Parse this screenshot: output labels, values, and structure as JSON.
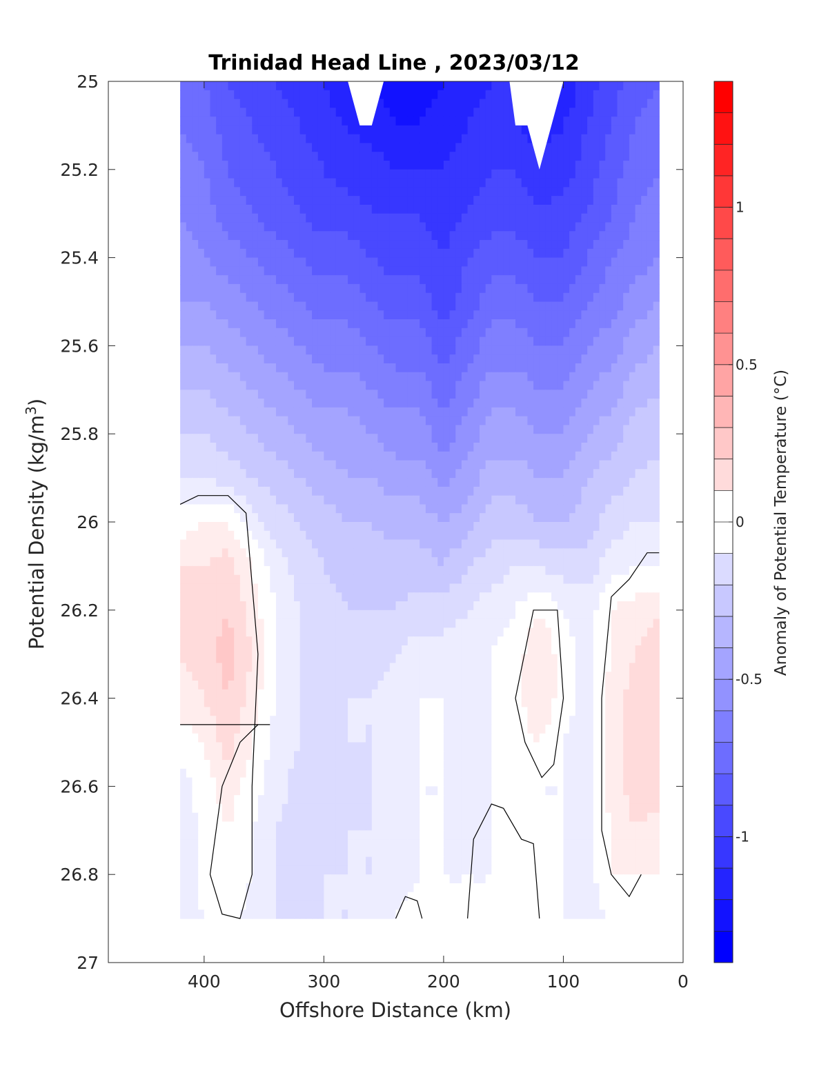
{
  "chart_data": {
    "type": "heatmap",
    "subtype": "filled-contour",
    "title": "Trinidad Head Line , 2023/03/12",
    "xlabel": "Offshore Distance (km)",
    "ylabel": "Potential Density (kg/m",
    "ylabel_sup": "3",
    "ylabel_close": ")",
    "colorbar_label": "Anomaly of Potential Temperature (°C)",
    "xlim": [
      480,
      0
    ],
    "x_reversed": true,
    "ylim": [
      25,
      27
    ],
    "y_reversed": true,
    "xticks": [
      400,
      300,
      200,
      100,
      0
    ],
    "xtick_labels": [
      "400",
      "300",
      "200",
      "100",
      "0"
    ],
    "yticks": [
      25,
      25.2,
      25.4,
      25.6,
      25.8,
      26,
      26.2,
      26.4,
      26.6,
      26.8,
      27
    ],
    "ytick_labels": [
      "25",
      "25.2",
      "25.4",
      "25.6",
      "25.8",
      "26",
      "26.2",
      "26.4",
      "26.6",
      "26.8",
      "27"
    ],
    "colorbar": {
      "range": [
        -1.4,
        1.4
      ],
      "step": 0.1,
      "ticks": [
        1,
        0.5,
        0,
        -0.5,
        -1
      ],
      "tick_labels": [
        "1",
        "0.5",
        "0",
        "-0.5",
        "-1"
      ],
      "colormap": "blue-white-red",
      "color_min": "#0000ff",
      "color_zero": "#ffffff",
      "color_max": "#ff0000"
    },
    "data_extent": {
      "x": [
        420,
        20
      ],
      "y": [
        25,
        26.9
      ]
    },
    "stations_km": [
      420,
      400,
      380,
      360,
      340,
      320,
      300,
      280,
      260,
      240,
      220,
      200,
      180,
      160,
      140,
      120,
      100,
      80,
      60,
      40,
      20
    ],
    "density_levels": [
      25.0,
      25.1,
      25.2,
      25.3,
      25.4,
      25.5,
      25.6,
      25.7,
      25.8,
      25.9,
      26.0,
      26.1,
      26.2,
      26.3,
      26.4,
      26.5,
      26.6,
      26.7,
      26.8,
      26.9
    ],
    "anomaly_grid": [
      [
        -0.75,
        -0.85,
        -0.95,
        -1.0,
        -1.05,
        -1.1,
        -1.15,
        -1.25,
        null,
        -1.3,
        -1.3,
        -1.25,
        -1.2,
        -1.15,
        null,
        null,
        -1.25,
        -1.1,
        -1.0,
        -0.9,
        -0.85
      ],
      [
        -0.75,
        -0.8,
        -0.9,
        -0.95,
        -1.0,
        -1.05,
        -1.1,
        -1.15,
        -1.2,
        -1.25,
        -1.25,
        -1.2,
        -1.15,
        -1.1,
        -1.15,
        -1.2,
        -1.15,
        -1.05,
        -0.95,
        -0.85,
        -0.8
      ],
      [
        -0.7,
        -0.75,
        -0.85,
        -0.9,
        -0.95,
        -1.0,
        -1.05,
        -1.1,
        -1.1,
        -1.15,
        -1.15,
        -1.15,
        -1.1,
        -1.05,
        -1.05,
        null,
        -1.1,
        -1.0,
        -0.9,
        -0.8,
        -0.75
      ],
      [
        -0.65,
        -0.7,
        -0.8,
        -0.85,
        -0.9,
        -0.95,
        -1.0,
        -1.0,
        -1.05,
        -1.05,
        -1.05,
        -1.1,
        -1.05,
        -1.0,
        -1.0,
        -1.05,
        -1.0,
        -0.95,
        -0.85,
        -0.75,
        -0.7
      ],
      [
        -0.6,
        -0.65,
        -0.7,
        -0.75,
        -0.8,
        -0.85,
        -0.9,
        -0.9,
        -0.95,
        -1.0,
        -1.0,
        -1.05,
        -0.95,
        -0.9,
        -0.9,
        -0.95,
        -0.95,
        -0.85,
        -0.75,
        -0.7,
        -0.65
      ],
      [
        -0.55,
        -0.55,
        -0.6,
        -0.65,
        -0.7,
        -0.75,
        -0.8,
        -0.8,
        -0.85,
        -0.9,
        -0.9,
        -1.0,
        -0.9,
        -0.8,
        -0.8,
        -0.85,
        -0.85,
        -0.75,
        -0.7,
        -0.6,
        -0.55
      ],
      [
        -0.45,
        -0.45,
        -0.5,
        -0.55,
        -0.6,
        -0.65,
        -0.7,
        -0.7,
        -0.75,
        -0.8,
        -0.8,
        -0.9,
        -0.8,
        -0.7,
        -0.7,
        -0.75,
        -0.75,
        -0.65,
        -0.6,
        -0.5,
        -0.45
      ],
      [
        -0.35,
        -0.35,
        -0.4,
        -0.45,
        -0.5,
        -0.55,
        -0.6,
        -0.6,
        -0.65,
        -0.7,
        -0.7,
        -0.8,
        -0.7,
        -0.6,
        -0.6,
        -0.65,
        -0.65,
        -0.55,
        -0.5,
        -0.4,
        -0.35
      ],
      [
        -0.25,
        -0.25,
        -0.3,
        -0.35,
        -0.4,
        -0.45,
        -0.5,
        -0.5,
        -0.55,
        -0.6,
        -0.6,
        -0.7,
        -0.6,
        -0.5,
        -0.5,
        -0.55,
        -0.55,
        -0.45,
        -0.4,
        -0.3,
        -0.3
      ],
      [
        -0.15,
        -0.15,
        -0.2,
        -0.25,
        -0.3,
        -0.35,
        -0.4,
        -0.45,
        -0.45,
        -0.5,
        -0.5,
        -0.6,
        -0.5,
        -0.4,
        -0.4,
        -0.45,
        -0.45,
        -0.35,
        -0.3,
        -0.25,
        -0.2
      ],
      [
        0.0,
        0.05,
        0.05,
        -0.1,
        -0.2,
        -0.25,
        -0.3,
        -0.35,
        -0.35,
        -0.4,
        -0.4,
        -0.45,
        -0.4,
        -0.3,
        -0.3,
        -0.35,
        -0.35,
        -0.3,
        -0.2,
        -0.15,
        -0.15
      ],
      [
        0.15,
        0.15,
        0.2,
        0.05,
        -0.1,
        -0.2,
        -0.25,
        -0.3,
        -0.3,
        -0.3,
        -0.3,
        -0.35,
        -0.25,
        -0.2,
        -0.15,
        -0.15,
        -0.2,
        -0.2,
        -0.1,
        -0.05,
        -0.05
      ],
      [
        0.15,
        0.2,
        0.25,
        0.1,
        -0.05,
        -0.15,
        -0.2,
        -0.25,
        -0.25,
        -0.25,
        -0.2,
        -0.2,
        -0.15,
        -0.1,
        -0.05,
        0.05,
        -0.05,
        -0.1,
        0.05,
        0.1,
        0.15
      ],
      [
        0.15,
        0.2,
        0.3,
        0.15,
        -0.05,
        -0.15,
        -0.2,
        -0.2,
        -0.2,
        -0.15,
        -0.1,
        -0.1,
        -0.1,
        -0.05,
        0.0,
        0.15,
        0.0,
        -0.1,
        0.05,
        0.15,
        0.2
      ],
      [
        0.1,
        0.15,
        0.25,
        0.1,
        -0.05,
        -0.15,
        -0.15,
        -0.15,
        -0.15,
        -0.1,
        -0.05,
        -0.05,
        -0.05,
        -0.05,
        0.0,
        0.15,
        0.0,
        -0.1,
        0.1,
        0.2,
        0.25
      ],
      [
        0.0,
        0.05,
        0.2,
        0.05,
        -0.1,
        -0.15,
        -0.2,
        -0.15,
        -0.15,
        -0.1,
        -0.05,
        -0.05,
        -0.1,
        -0.05,
        0.0,
        0.05,
        -0.05,
        -0.1,
        0.1,
        0.2,
        0.25
      ],
      [
        -0.1,
        0.0,
        0.1,
        0.0,
        -0.1,
        -0.2,
        -0.2,
        -0.2,
        -0.15,
        -0.1,
        -0.05,
        -0.05,
        -0.1,
        -0.05,
        -0.05,
        -0.05,
        -0.05,
        -0.1,
        0.1,
        0.2,
        0.2
      ],
      [
        -0.15,
        0.0,
        0.05,
        -0.05,
        -0.15,
        -0.2,
        -0.2,
        -0.15,
        -0.15,
        -0.1,
        -0.05,
        -0.05,
        -0.1,
        -0.05,
        0.0,
        -0.05,
        -0.05,
        -0.1,
        0.05,
        0.15,
        0.1
      ],
      [
        -0.15,
        0.0,
        0.05,
        -0.05,
        -0.15,
        -0.2,
        -0.15,
        -0.15,
        -0.15,
        -0.1,
        -0.05,
        -0.05,
        -0.05,
        -0.05,
        0.0,
        0.0,
        -0.05,
        -0.1,
        0.05,
        0.05,
        0.05
      ],
      [
        -0.15,
        -0.05,
        0.0,
        -0.1,
        -0.15,
        -0.15,
        -0.15,
        -0.15,
        -0.1,
        -0.05,
        0.0,
        -0.05,
        -0.05,
        -0.05,
        0.0,
        0.0,
        -0.05,
        -0.1,
        -0.05,
        0.0,
        -0.05
      ]
    ]
  }
}
